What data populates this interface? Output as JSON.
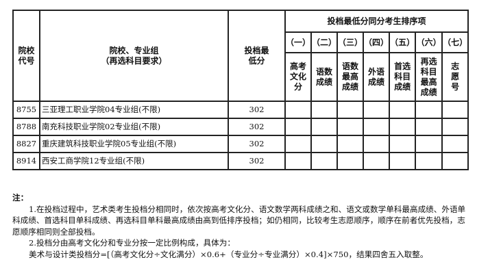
{
  "header": {
    "code": "院校代号",
    "name_line1": "院校、专业组",
    "name_line2": "（再选科目要求）",
    "score": "投档最低分",
    "tiebreak_title": "投档最低分同分考生排序项",
    "tiebreak_cols": [
      {
        "num": "（一）",
        "label": "高考文化分"
      },
      {
        "num": "（二）",
        "label": "语数成绩"
      },
      {
        "num": "（三）",
        "label": "语数最高成绩"
      },
      {
        "num": "（四）",
        "label": "外语成绩"
      },
      {
        "num": "（五）",
        "label": "首选科目成绩"
      },
      {
        "num": "（六）",
        "label": "再选科目最高成绩"
      },
      {
        "num": "（七）",
        "label": "志愿号"
      }
    ]
  },
  "rows": [
    {
      "code": "8755",
      "name": "三亚理工职业学院04专业组(不限)",
      "score": "302"
    },
    {
      "code": "8788",
      "name": "南充科技职业学院02专业组(不限)",
      "score": "302"
    },
    {
      "code": "8827",
      "name": "重庆建筑科技职业学院05专业组(不限)",
      "score": "302"
    },
    {
      "code": "8914",
      "name": "西安工商学院12专业组(不限)",
      "score": "302"
    }
  ],
  "notes": {
    "title": "注：",
    "p1": "1.在投档过程中，艺术类考生投档分相同时，依次按高考文化分、语文数学两科成绩之和、语文或数学单科最高成绩、外语单科成绩、首选科目单科成绩、再选科目单科最高成绩由高到低排序投档；如仍相同，比较考生志愿顺序，顺序在前者优先投档，志愿顺序相同则全部投档。",
    "p2": "2.投档分由高考文化分和专业分按一定比例构成，具体为：",
    "p3": "美术与设计类投档分=[（高考文化分÷文化满分）×0.6+（专业分÷专业满分）×0.4]×750，结果四舍五入取整。"
  }
}
